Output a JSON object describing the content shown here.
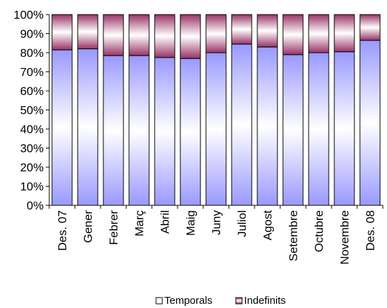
{
  "chart_data": {
    "type": "bar",
    "stacked": "percent",
    "categories": [
      "Des. 07",
      "Gener",
      "Febrer",
      "Març",
      "Abril",
      "Maig",
      "Juny",
      "Juliol",
      "Agost",
      "Setembre",
      "Octubre",
      "Novembre",
      "Des. 08"
    ],
    "series": [
      {
        "name": "Temporals",
        "values": [
          81.5,
          82,
          78.5,
          78.5,
          77.5,
          77,
          80,
          84.5,
          83,
          79,
          80,
          80.5,
          86.5
        ]
      },
      {
        "name": "Indefinits",
        "values": [
          18.5,
          18,
          21.5,
          21.5,
          22.5,
          23,
          20,
          15.5,
          17,
          21,
          20,
          19.5,
          13.5
        ]
      }
    ],
    "yticks": [
      "0%",
      "10%",
      "20%",
      "30%",
      "40%",
      "50%",
      "60%",
      "70%",
      "80%",
      "90%",
      "100%"
    ],
    "ylim": [
      0,
      100
    ],
    "legend_position": "bottom",
    "colors": {
      "temporals": "#9999ff",
      "indefinits": "#993366",
      "axis": "#000000"
    }
  }
}
